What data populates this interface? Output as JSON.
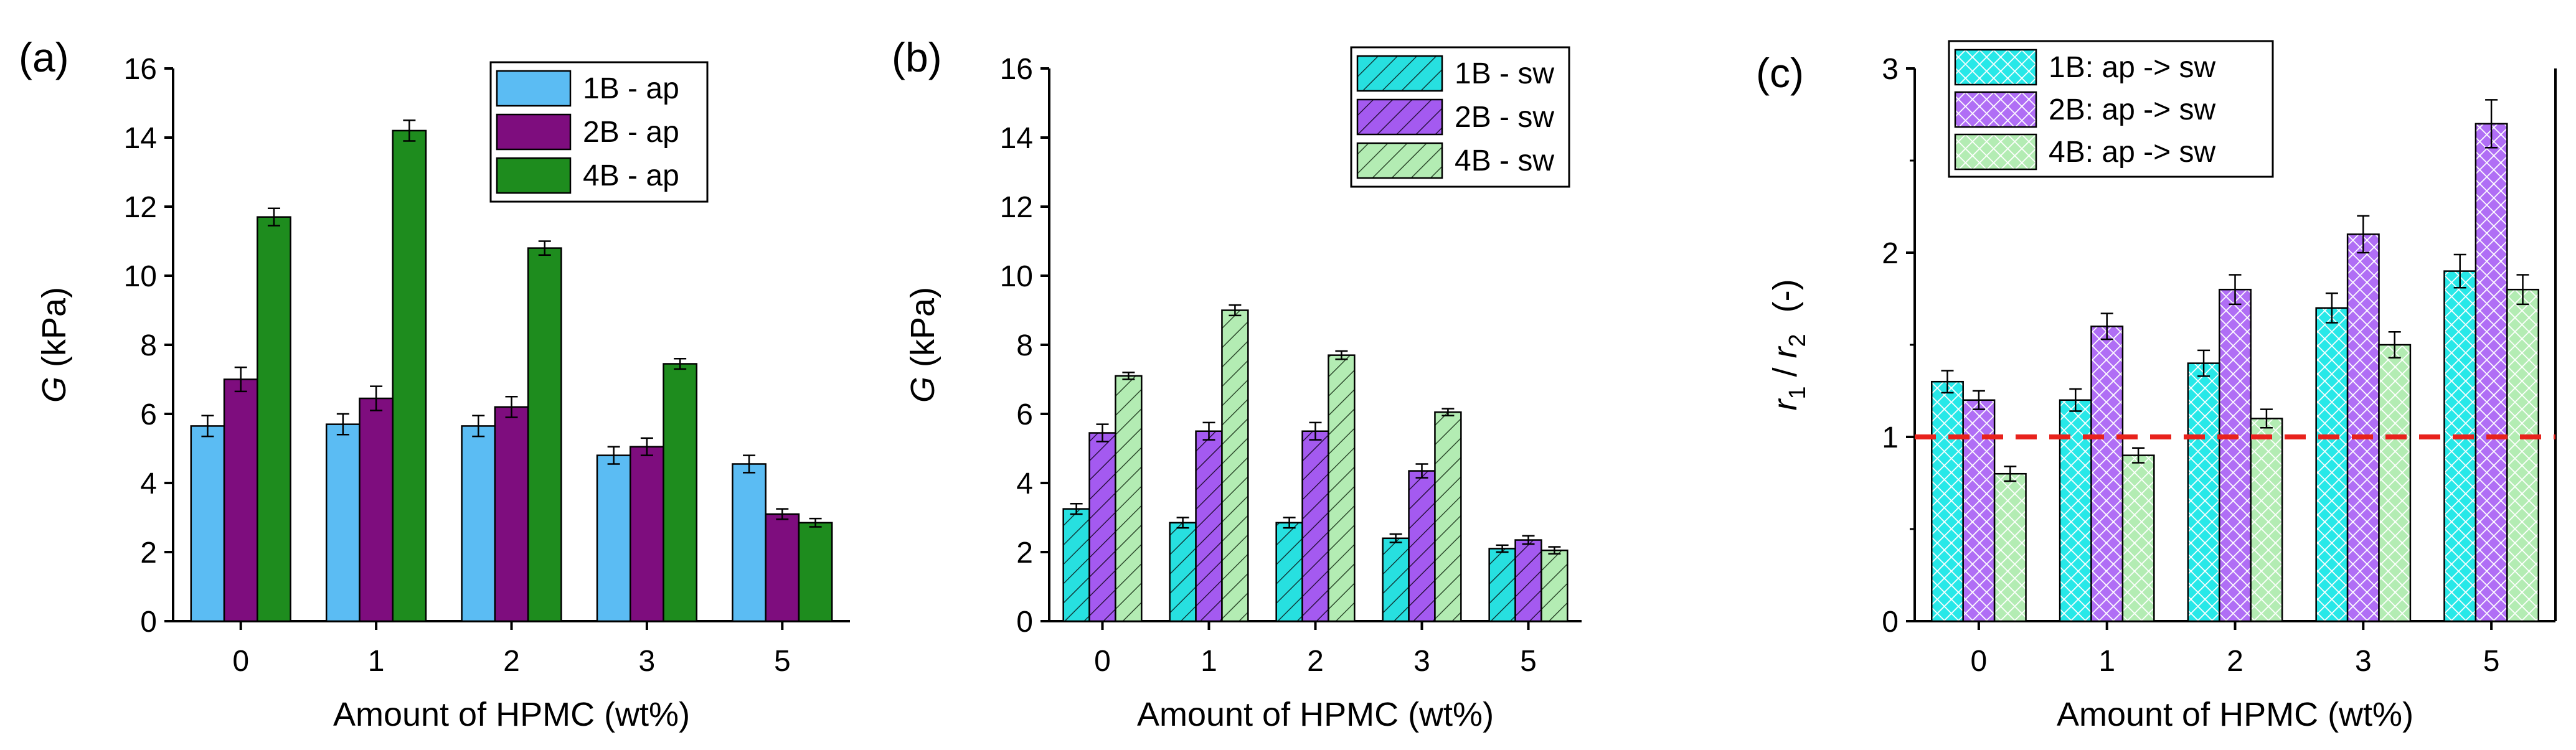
{
  "chart_data": [
    {
      "type": "bar",
      "panel_label": "(a)",
      "categories": [
        "0",
        "1",
        "2",
        "3",
        "5"
      ],
      "xlabel": "Amount of HPMC (wt%)",
      "ylabel_symbol": "G",
      "ylabel_unit": "(kPa)",
      "ylim": [
        0,
        16
      ],
      "yticks": [
        "0",
        "2",
        "4",
        "6",
        "8",
        "10",
        "12",
        "14",
        "16"
      ],
      "legend_position": "top-right",
      "series": [
        {
          "name": "1B - ap",
          "color": "#5bbcf3",
          "pattern": "solid",
          "values": [
            5.65,
            5.7,
            5.65,
            4.8,
            4.55
          ],
          "errors": [
            0.3,
            0.3,
            0.3,
            0.25,
            0.25
          ]
        },
        {
          "name": "2B - ap",
          "color": "#7e0d7e",
          "pattern": "solid",
          "values": [
            7.0,
            6.45,
            6.2,
            5.05,
            3.1
          ],
          "errors": [
            0.35,
            0.35,
            0.3,
            0.25,
            0.15
          ]
        },
        {
          "name": "4B - ap",
          "color": "#1e8c1e",
          "pattern": "solid",
          "values": [
            11.7,
            14.2,
            10.8,
            7.45,
            2.85
          ],
          "errors": [
            0.25,
            0.3,
            0.2,
            0.15,
            0.12
          ]
        }
      ]
    },
    {
      "type": "bar",
      "panel_label": "(b)",
      "categories": [
        "0",
        "1",
        "2",
        "3",
        "5"
      ],
      "xlabel": "Amount of HPMC (wt%)",
      "ylabel_symbol": "G",
      "ylabel_unit": "(kPa)",
      "ylim": [
        0,
        16
      ],
      "yticks": [
        "0",
        "2",
        "4",
        "6",
        "8",
        "10",
        "12",
        "14",
        "16"
      ],
      "legend_position": "top-right",
      "series": [
        {
          "name": "1B - sw",
          "color": "#27e0e0",
          "pattern": "hatch",
          "values": [
            3.25,
            2.85,
            2.85,
            2.4,
            2.1
          ],
          "errors": [
            0.15,
            0.15,
            0.15,
            0.12,
            0.1
          ]
        },
        {
          "name": "2B - sw",
          "color": "#a45af0",
          "pattern": "hatch",
          "values": [
            5.45,
            5.5,
            5.5,
            4.35,
            2.35
          ],
          "errors": [
            0.25,
            0.25,
            0.25,
            0.2,
            0.12
          ]
        },
        {
          "name": "4B - sw",
          "color": "#b3ecb3",
          "pattern": "hatch",
          "values": [
            7.1,
            9.0,
            7.7,
            6.05,
            2.05
          ],
          "errors": [
            0.1,
            0.15,
            0.12,
            0.1,
            0.1
          ]
        }
      ]
    },
    {
      "type": "bar",
      "panel_label": "(c)",
      "categories": [
        "0",
        "1",
        "2",
        "3",
        "5"
      ],
      "xlabel": "Amount of HPMC (wt%)",
      "ylabel_parts": [
        "r",
        "1",
        " / ",
        "r",
        "2",
        "(-)"
      ],
      "ylim": [
        0,
        3
      ],
      "yticks": [
        "0",
        "1",
        "2",
        "3"
      ],
      "reference_line": {
        "y": 1,
        "color": "#e8221c",
        "style": "dashed"
      },
      "legend_position": "top-left",
      "series": [
        {
          "name": "1B:  ap -> sw",
          "color": "#27e8e8",
          "pattern": "crosshatch",
          "values": [
            1.3,
            1.2,
            1.4,
            1.7,
            1.9
          ],
          "errors": [
            0.06,
            0.06,
            0.07,
            0.08,
            0.09
          ]
        },
        {
          "name": "2B:  ap -> sw",
          "color": "#b06ef5",
          "pattern": "crosshatch",
          "values": [
            1.2,
            1.6,
            1.8,
            2.1,
            2.7
          ],
          "errors": [
            0.05,
            0.07,
            0.08,
            0.1,
            0.13
          ]
        },
        {
          "name": "4B:  ap -> sw",
          "color": "#b3ecb3",
          "pattern": "crosshatch",
          "values": [
            0.8,
            0.9,
            1.1,
            1.5,
            1.8
          ],
          "errors": [
            0.04,
            0.04,
            0.05,
            0.07,
            0.08
          ]
        }
      ]
    }
  ]
}
